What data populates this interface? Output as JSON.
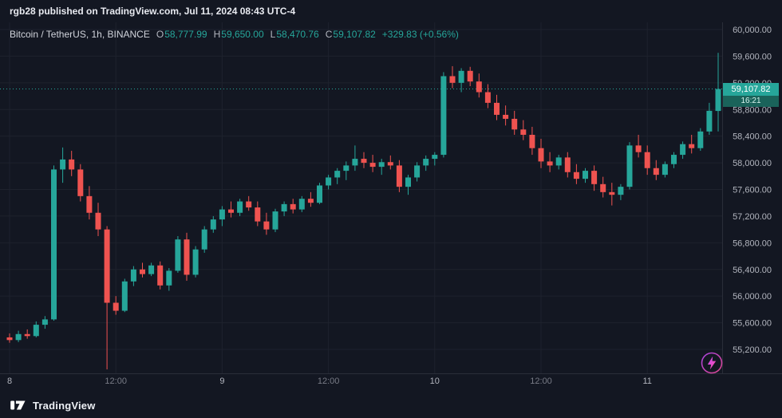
{
  "header": {
    "attribution": "rgb28 published on TradingView.com, Jul 11, 2024 08:43 UTC-4"
  },
  "legend": {
    "symbol": "Bitcoin / TetherUS, 1h, BINANCE",
    "ohlc": [
      {
        "label": "O",
        "value": "58,777.99"
      },
      {
        "label": "H",
        "value": "59,650.00"
      },
      {
        "label": "L",
        "value": "58,470.76"
      },
      {
        "label": "C",
        "value": "59,107.82"
      }
    ],
    "change": "+329.83 (+0.56%)"
  },
  "last_price": {
    "label": "59,107.82",
    "value": 59107.82,
    "countdown": "16:21"
  },
  "price_axis": {
    "ticks": [
      {
        "label": "60,000.00",
        "value": 60000
      },
      {
        "label": "59,600.00",
        "value": 59600
      },
      {
        "label": "59,200.00",
        "value": 59200
      },
      {
        "label": "58,800.00",
        "value": 58800
      },
      {
        "label": "58,400.00",
        "value": 58400
      },
      {
        "label": "58,000.00",
        "value": 58000
      },
      {
        "label": "57,600.00",
        "value": 57600
      },
      {
        "label": "57,200.00",
        "value": 57200
      },
      {
        "label": "56,800.00",
        "value": 56800
      },
      {
        "label": "56,400.00",
        "value": 56400
      },
      {
        "label": "56,000.00",
        "value": 56000
      },
      {
        "label": "55,600.00",
        "value": 55600
      },
      {
        "label": "55,200.00",
        "value": 55200
      }
    ]
  },
  "time_axis": {
    "ticks": [
      {
        "label": "8",
        "hour": 0,
        "major": true
      },
      {
        "label": "12:00",
        "hour": 12,
        "major": false
      },
      {
        "label": "9",
        "hour": 24,
        "major": true
      },
      {
        "label": "12:00",
        "hour": 36,
        "major": false
      },
      {
        "label": "10",
        "hour": 48,
        "major": true
      },
      {
        "label": "12:00",
        "hour": 60,
        "major": false
      },
      {
        "label": "11",
        "hour": 72,
        "major": true
      }
    ]
  },
  "footer": {
    "brand": "TradingView"
  },
  "colors": {
    "background": "#131722",
    "up": "#26a69a",
    "down": "#ef5350",
    "grid": "#1e222d",
    "border": "#2a2e39",
    "axis_text": "#787b86",
    "axis_text_major": "#b2b5be",
    "badge_bg": "#26a69a",
    "badge_countdown_bg": "#1a635a",
    "boost_gradient": [
      "#c44bff",
      "#ff4ea1"
    ]
  },
  "chart_data": {
    "type": "candlestick",
    "title": "Bitcoin / TetherUS, 1h, BINANCE",
    "symbol": "Bitcoin / TetherUS",
    "interval": "1h",
    "exchange": "BINANCE",
    "open": 58777.99,
    "high": 59650.0,
    "low": 58470.76,
    "close": 59107.82,
    "change": 329.83,
    "change_pct": 0.56,
    "x_start": "Jul 8 00:00",
    "x_end": "Jul 11 08:00",
    "x_unit": "hour-index from Jul 8 00:00",
    "ylim": [
      54900,
      60100
    ],
    "grid": true,
    "candle_format": [
      "open",
      "high",
      "low",
      "close"
    ],
    "candles": [
      [
        55380,
        55440,
        55300,
        55340
      ],
      [
        55340,
        55480,
        55310,
        55430
      ],
      [
        55430,
        55500,
        55360,
        55400
      ],
      [
        55400,
        55620,
        55380,
        55570
      ],
      [
        55570,
        55700,
        55510,
        55650
      ],
      [
        55650,
        57960,
        55630,
        57900
      ],
      [
        57900,
        58230,
        57700,
        58050
      ],
      [
        58050,
        58180,
        57800,
        57900
      ],
      [
        57900,
        57980,
        57420,
        57500
      ],
      [
        57500,
        57650,
        57150,
        57250
      ],
      [
        57250,
        57400,
        56900,
        57000
      ],
      [
        57000,
        57050,
        54900,
        55900
      ],
      [
        55900,
        56000,
        55720,
        55780
      ],
      [
        55780,
        56260,
        55760,
        56220
      ],
      [
        56220,
        56450,
        56150,
        56400
      ],
      [
        56400,
        56500,
        56280,
        56330
      ],
      [
        56330,
        56500,
        56300,
        56460
      ],
      [
        56460,
        56520,
        56100,
        56160
      ],
      [
        56160,
        56420,
        56080,
        56380
      ],
      [
        56380,
        56900,
        56350,
        56850
      ],
      [
        56850,
        56950,
        56230,
        56320
      ],
      [
        56320,
        56750,
        56280,
        56700
      ],
      [
        56700,
        57050,
        56650,
        57000
      ],
      [
        57000,
        57200,
        56950,
        57150
      ],
      [
        57150,
        57350,
        57050,
        57300
      ],
      [
        57300,
        57420,
        57180,
        57250
      ],
      [
        57250,
        57460,
        57200,
        57420
      ],
      [
        57420,
        57500,
        57280,
        57330
      ],
      [
        57330,
        57420,
        57050,
        57120
      ],
      [
        57120,
        57250,
        56920,
        57000
      ],
      [
        57000,
        57310,
        56960,
        57270
      ],
      [
        57270,
        57420,
        57200,
        57380
      ],
      [
        57380,
        57460,
        57240,
        57300
      ],
      [
        57300,
        57500,
        57260,
        57460
      ],
      [
        57460,
        57560,
        57340,
        57400
      ],
      [
        57400,
        57700,
        57380,
        57660
      ],
      [
        57660,
        57820,
        57600,
        57780
      ],
      [
        57780,
        57920,
        57680,
        57880
      ],
      [
        57880,
        58020,
        57740,
        57960
      ],
      [
        57960,
        58260,
        57880,
        58060
      ],
      [
        58060,
        58160,
        57920,
        58000
      ],
      [
        58000,
        58120,
        57860,
        57940
      ],
      [
        57940,
        58060,
        57820,
        58010
      ],
      [
        58010,
        58110,
        57900,
        57960
      ],
      [
        57960,
        58040,
        57560,
        57640
      ],
      [
        57640,
        57820,
        57520,
        57780
      ],
      [
        57780,
        58010,
        57720,
        57960
      ],
      [
        57960,
        58110,
        57880,
        58060
      ],
      [
        58060,
        58160,
        57960,
        58120
      ],
      [
        58120,
        59360,
        58080,
        59300
      ],
      [
        59300,
        59450,
        59120,
        59200
      ],
      [
        59200,
        59420,
        59060,
        59380
      ],
      [
        59380,
        59440,
        59150,
        59220
      ],
      [
        59220,
        59340,
        58980,
        59060
      ],
      [
        59060,
        59180,
        58820,
        58900
      ],
      [
        58900,
        59020,
        58640,
        58720
      ],
      [
        58720,
        58860,
        58560,
        58660
      ],
      [
        58660,
        58780,
        58420,
        58500
      ],
      [
        58500,
        58640,
        58340,
        58420
      ],
      [
        58420,
        58540,
        58120,
        58220
      ],
      [
        58220,
        58360,
        57920,
        58020
      ],
      [
        58020,
        58160,
        57860,
        57960
      ],
      [
        57960,
        58120,
        57900,
        58080
      ],
      [
        58080,
        58160,
        57780,
        57860
      ],
      [
        57860,
        57980,
        57680,
        57760
      ],
      [
        57760,
        57920,
        57700,
        57880
      ],
      [
        57880,
        57960,
        57580,
        57680
      ],
      [
        57680,
        57790,
        57480,
        57560
      ],
      [
        57560,
        57700,
        57360,
        57520
      ],
      [
        57520,
        57680,
        57440,
        57640
      ],
      [
        57640,
        58310,
        57600,
        58260
      ],
      [
        58260,
        58420,
        58080,
        58160
      ],
      [
        58160,
        58260,
        57820,
        57920
      ],
      [
        57920,
        58040,
        57740,
        57820
      ],
      [
        57820,
        58020,
        57780,
        57980
      ],
      [
        57980,
        58160,
        57920,
        58120
      ],
      [
        58120,
        58320,
        58060,
        58280
      ],
      [
        58280,
        58420,
        58140,
        58220
      ],
      [
        58220,
        58520,
        58180,
        58470
      ],
      [
        58470,
        58900,
        58420,
        58780
      ],
      [
        58777.99,
        59650.0,
        58470.76,
        59107.82
      ]
    ]
  }
}
